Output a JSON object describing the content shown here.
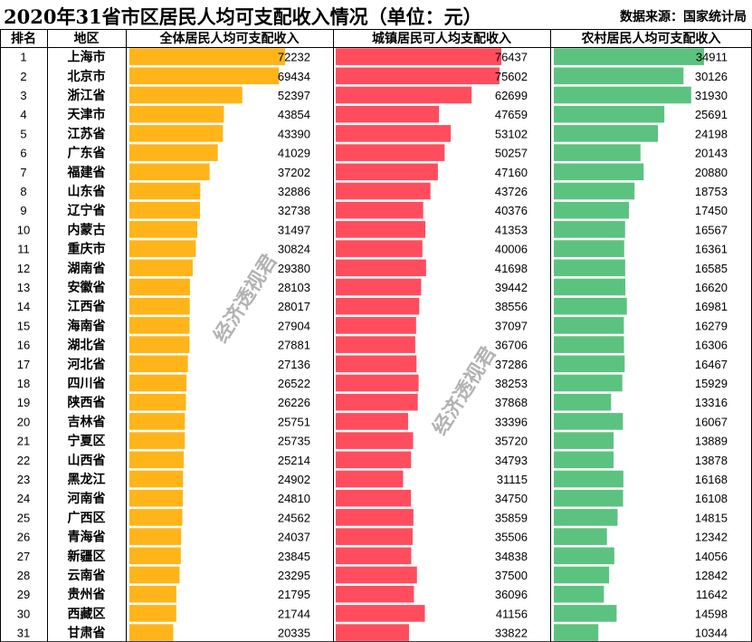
{
  "title": "2020年31省市区居民人均可支配收入情况（单位：元）",
  "source": "数据来源：国家统计局",
  "watermark": "经济透视君",
  "colors": {
    "overall": "#FFB419",
    "urban": "#FF4D5E",
    "rural": "#5CC280",
    "grid": "#000000"
  },
  "headers": {
    "rank": "排名",
    "region": "地区",
    "overall": "全体居民人均可支配收入",
    "urban": "城镇居民可人均支配收入",
    "rural": "农村居民人均可支配收入"
  },
  "chart_data": {
    "type": "bar",
    "orientation": "horizontal",
    "categories": [
      "上海市",
      "北京市",
      "浙江省",
      "天津市",
      "江苏省",
      "广东省",
      "福建省",
      "山东省",
      "辽宁省",
      "内蒙古",
      "重庆市",
      "湖南省",
      "安徽省",
      "江西省",
      "海南省",
      "湖北省",
      "河北省",
      "四川省",
      "陕西省",
      "吉林省",
      "宁夏区",
      "山西省",
      "黑龙江",
      "河南省",
      "广西区",
      "青海省",
      "新疆区",
      "云南省",
      "贵州省",
      "西藏区",
      "甘肃省"
    ],
    "ranks": [
      "1",
      "2",
      "3",
      "4",
      "5",
      "6",
      "7",
      "8",
      "9",
      "10",
      "11",
      "12",
      "13",
      "14",
      "15",
      "16",
      "17",
      "18",
      "19",
      "20",
      "21",
      "22",
      "23",
      "24",
      "25",
      "26",
      "27",
      "28",
      "29",
      "30",
      "31"
    ],
    "series": [
      {
        "name": "全体居民人均可支配收入",
        "values": [
          72232,
          69434,
          52397,
          43854,
          43390,
          41029,
          37202,
          32886,
          32738,
          31497,
          30824,
          29380,
          28103,
          28017,
          27904,
          27881,
          27136,
          26522,
          26226,
          25751,
          25735,
          25214,
          24902,
          24810,
          24562,
          24037,
          23845,
          23295,
          21795,
          21744,
          20335
        ]
      },
      {
        "name": "城镇居民可人均支配收入",
        "values": [
          76437,
          75602,
          62699,
          47659,
          53102,
          50257,
          47160,
          43726,
          40376,
          41353,
          40006,
          41698,
          39442,
          38556,
          37097,
          36706,
          37286,
          38253,
          37868,
          33396,
          35720,
          34793,
          31115,
          34750,
          35859,
          35506,
          34838,
          37500,
          36096,
          41156,
          33822
        ]
      },
      {
        "name": "农村居民人均可支配收入",
        "values": [
          34911,
          30126,
          31930,
          25691,
          24198,
          20143,
          20880,
          18753,
          17450,
          16567,
          16361,
          16585,
          16620,
          16981,
          16279,
          16306,
          16467,
          15929,
          13316,
          16067,
          13889,
          13878,
          16168,
          16108,
          14815,
          12342,
          14056,
          12842,
          11642,
          14598,
          10344
        ]
      }
    ]
  }
}
